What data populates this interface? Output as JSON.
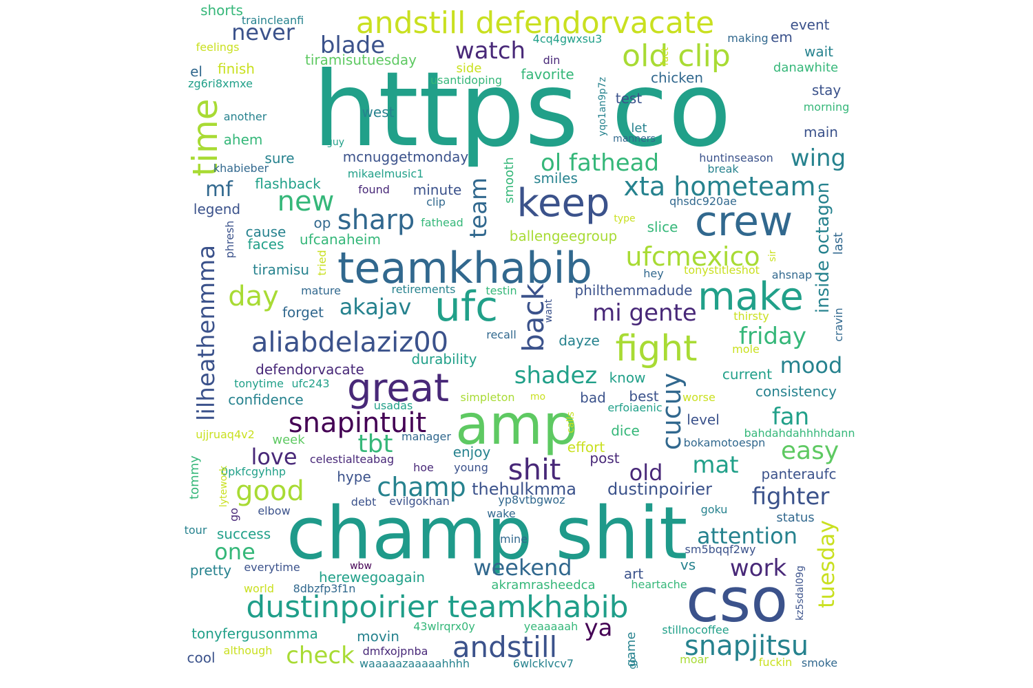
{
  "palette": {
    "teal": "#21a089",
    "teal_dark": "#1f9a8a",
    "lime": "#c9e020",
    "yellow_green": "#a8db34",
    "green": "#5ec962",
    "green_mid": "#35b779",
    "blue": "#31688e",
    "blue_dark": "#3b528b",
    "indigo": "#404688",
    "purple": "#440154",
    "purple_mid": "#482878",
    "teal_blue": "#26828e",
    "cyan": "#1f9e89"
  },
  "words": [
    {
      "text": "https co",
      "color": "teal",
      "vertical": false
    },
    {
      "text": "champ shit",
      "color": "teal_dark",
      "vertical": false
    },
    {
      "text": "cso",
      "color": "blue_dark",
      "vertical": false
    },
    {
      "text": "amp",
      "color": "green",
      "vertical": false
    },
    {
      "text": "teamkhabib",
      "color": "blue",
      "vertical": false
    },
    {
      "text": "andstill defendorvacate",
      "color": "lime",
      "vertical": false
    },
    {
      "text": "dustinpoirier teamkhabib",
      "color": "cyan",
      "vertical": false
    },
    {
      "text": "crew",
      "color": "blue",
      "vertical": false
    },
    {
      "text": "keep",
      "color": "blue_dark",
      "vertical": false
    },
    {
      "text": "ufc",
      "color": "teal",
      "vertical": false
    },
    {
      "text": "great",
      "color": "purple_mid",
      "vertical": false
    },
    {
      "text": "make",
      "color": "teal",
      "vertical": false
    },
    {
      "text": "fight",
      "color": "yellow_green",
      "vertical": false
    },
    {
      "text": "old clip",
      "color": "yellow_green",
      "vertical": false
    },
    {
      "text": "time",
      "color": "yellow_green",
      "vertical": true
    },
    {
      "text": "aliabdelaziz00",
      "color": "blue_dark",
      "vertical": false
    },
    {
      "text": "andstill",
      "color": "blue_dark",
      "vertical": false
    },
    {
      "text": "snapjitsu",
      "color": "teal_blue",
      "vertical": false
    },
    {
      "text": "xta hometeam",
      "color": "teal_blue",
      "vertical": false
    },
    {
      "text": "ufcmexico",
      "color": "yellow_green",
      "vertical": false
    },
    {
      "text": "new",
      "color": "green_mid",
      "vertical": false
    },
    {
      "text": "sharp",
      "color": "blue",
      "vertical": false
    },
    {
      "text": "snapintuit",
      "color": "purple",
      "vertical": false
    },
    {
      "text": "shit",
      "color": "purple_mid",
      "vertical": false
    },
    {
      "text": "good",
      "color": "yellow_green",
      "vertical": false
    },
    {
      "text": "champ",
      "color": "teal_blue",
      "vertical": false
    },
    {
      "text": "back",
      "color": "blue_dark",
      "vertical": true
    },
    {
      "text": "cucuy",
      "color": "blue",
      "vertical": true
    },
    {
      "text": "shadez",
      "color": "teal",
      "vertical": false
    },
    {
      "text": "day",
      "color": "yellow_green",
      "vertical": false
    },
    {
      "text": "lilheathenmma",
      "color": "blue_dark",
      "vertical": true
    },
    {
      "text": "team",
      "color": "blue",
      "vertical": true
    },
    {
      "text": "blade",
      "color": "blue_dark",
      "vertical": false
    },
    {
      "text": "watch",
      "color": "purple_mid",
      "vertical": false
    },
    {
      "text": "never",
      "color": "blue_dark",
      "vertical": false
    },
    {
      "text": "ol fathead",
      "color": "green_mid",
      "vertical": false
    },
    {
      "text": "wing",
      "color": "teal_blue",
      "vertical": false
    },
    {
      "text": "mi gente",
      "color": "purple_mid",
      "vertical": false
    },
    {
      "text": "akajav",
      "color": "teal_blue",
      "vertical": false
    },
    {
      "text": "tbt",
      "color": "green_mid",
      "vertical": false
    },
    {
      "text": "check",
      "color": "yellow_green",
      "vertical": false
    },
    {
      "text": "friday",
      "color": "green_mid",
      "vertical": false
    },
    {
      "text": "mood",
      "color": "teal_blue",
      "vertical": false
    },
    {
      "text": "fan",
      "color": "teal",
      "vertical": false
    },
    {
      "text": "easy",
      "color": "green",
      "vertical": false
    },
    {
      "text": "mat",
      "color": "teal",
      "vertical": false
    },
    {
      "text": "old",
      "color": "purple_mid",
      "vertical": false
    },
    {
      "text": "fighter",
      "color": "blue_dark",
      "vertical": false
    },
    {
      "text": "attention",
      "color": "teal_blue",
      "vertical": false
    },
    {
      "text": "weekend",
      "color": "blue",
      "vertical": false
    },
    {
      "text": "work",
      "color": "purple_mid",
      "vertical": false
    },
    {
      "text": "one",
      "color": "green_mid",
      "vertical": false
    },
    {
      "text": "ya",
      "color": "purple",
      "vertical": false
    },
    {
      "text": "tuesday",
      "color": "lime",
      "vertical": true
    },
    {
      "text": "inside octagon",
      "color": "teal_blue",
      "vertical": true
    },
    {
      "text": "love",
      "color": "purple_mid",
      "vertical": false
    },
    {
      "text": "mf",
      "color": "blue",
      "vertical": false
    },
    {
      "text": "thehulkmma",
      "color": "blue_dark",
      "vertical": false
    },
    {
      "text": "dustinpoirier",
      "color": "blue_dark",
      "vertical": false
    },
    {
      "text": "shorts",
      "color": "green_mid",
      "vertical": false
    },
    {
      "text": "traincleanfi",
      "color": "teal_blue",
      "vertical": false
    },
    {
      "text": "feelings",
      "color": "lime",
      "vertical": false
    },
    {
      "text": "finish",
      "color": "lime",
      "vertical": false
    },
    {
      "text": "tiramisutuesday",
      "color": "green",
      "vertical": false
    },
    {
      "text": "el",
      "color": "blue",
      "vertical": false
    },
    {
      "text": "zg6ri8xmxe",
      "color": "teal",
      "vertical": false
    },
    {
      "text": "another",
      "color": "teal_blue",
      "vertical": false
    },
    {
      "text": "west",
      "color": "teal_blue",
      "vertical": false
    },
    {
      "text": "ahem",
      "color": "green_mid",
      "vertical": false
    },
    {
      "text": "sure",
      "color": "teal_blue",
      "vertical": false
    },
    {
      "text": "guy",
      "color": "teal",
      "vertical": false
    },
    {
      "text": "mcnuggetmonday",
      "color": "blue_dark",
      "vertical": false
    },
    {
      "text": "khabieber",
      "color": "blue",
      "vertical": false
    },
    {
      "text": "mikaelmusic1",
      "color": "teal",
      "vertical": false
    },
    {
      "text": "flashback",
      "color": "teal",
      "vertical": false
    },
    {
      "text": "legend",
      "color": "blue_dark",
      "vertical": false
    },
    {
      "text": "found",
      "color": "purple_mid",
      "vertical": false
    },
    {
      "text": "minute",
      "color": "blue_dark",
      "vertical": false
    },
    {
      "text": "clip",
      "color": "blue",
      "vertical": false
    },
    {
      "text": "smiles",
      "color": "teal_blue",
      "vertical": false
    },
    {
      "text": "smooth",
      "color": "green_mid",
      "vertical": true
    },
    {
      "text": "fathead",
      "color": "green_mid",
      "vertical": false
    },
    {
      "text": "op",
      "color": "blue",
      "vertical": false
    },
    {
      "text": "cause",
      "color": "teal_blue",
      "vertical": false
    },
    {
      "text": "faces",
      "color": "teal",
      "vertical": false
    },
    {
      "text": "ufcanaheim",
      "color": "green_mid",
      "vertical": false
    },
    {
      "text": "ballengeegroup",
      "color": "yellow_green",
      "vertical": false
    },
    {
      "text": "phresh",
      "color": "blue_dark",
      "vertical": true
    },
    {
      "text": "tiramisu",
      "color": "teal_blue",
      "vertical": false
    },
    {
      "text": "tried",
      "color": "lime",
      "vertical": true
    },
    {
      "text": "mature",
      "color": "blue",
      "vertical": false
    },
    {
      "text": "retirements",
      "color": "teal_blue",
      "vertical": false
    },
    {
      "text": "testin",
      "color": "green_mid",
      "vertical": false
    },
    {
      "text": "philthemmadude",
      "color": "blue_dark",
      "vertical": false
    },
    {
      "text": "forget",
      "color": "blue",
      "vertical": false
    },
    {
      "text": "recall",
      "color": "blue",
      "vertical": false
    },
    {
      "text": "dayze",
      "color": "teal_blue",
      "vertical": false
    },
    {
      "text": "durability",
      "color": "teal",
      "vertical": false
    },
    {
      "text": "want",
      "color": "blue_dark",
      "vertical": true
    },
    {
      "text": "defendorvacate",
      "color": "purple_mid",
      "vertical": false
    },
    {
      "text": "tonytime",
      "color": "teal",
      "vertical": false
    },
    {
      "text": "ufc243",
      "color": "teal",
      "vertical": false
    },
    {
      "text": "confidence",
      "color": "teal_blue",
      "vertical": false
    },
    {
      "text": "know",
      "color": "teal",
      "vertical": false
    },
    {
      "text": "bad",
      "color": "blue_dark",
      "vertical": false
    },
    {
      "text": "best",
      "color": "blue_dark",
      "vertical": false
    },
    {
      "text": "simpleton",
      "color": "yellow_green",
      "vertical": false
    },
    {
      "text": "mo",
      "color": "lime",
      "vertical": false
    },
    {
      "text": "usadas",
      "color": "teal",
      "vertical": false
    },
    {
      "text": "calls",
      "color": "lime",
      "vertical": true
    },
    {
      "text": "erfoiaenic",
      "color": "teal",
      "vertical": false
    },
    {
      "text": "dice",
      "color": "green_mid",
      "vertical": false
    },
    {
      "text": "effort",
      "color": "lime",
      "vertical": false
    },
    {
      "text": "ujjruaq4v2",
      "color": "lime",
      "vertical": false
    },
    {
      "text": "week",
      "color": "green",
      "vertical": false
    },
    {
      "text": "manager",
      "color": "blue",
      "vertical": false
    },
    {
      "text": "enjoy",
      "color": "teal_blue",
      "vertical": false
    },
    {
      "text": "post",
      "color": "purple_mid",
      "vertical": false
    },
    {
      "text": "celestialteabag",
      "color": "purple_mid",
      "vertical": false
    },
    {
      "text": "hoe",
      "color": "purple_mid",
      "vertical": false
    },
    {
      "text": "young",
      "color": "blue_dark",
      "vertical": false
    },
    {
      "text": "hype",
      "color": "blue_dark",
      "vertical": false
    },
    {
      "text": "0pkfcgyhhp",
      "color": "teal",
      "vertical": false
    },
    {
      "text": "tommy",
      "color": "green_mid",
      "vertical": true
    },
    {
      "text": "lytework",
      "color": "lime",
      "vertical": true
    },
    {
      "text": "go",
      "color": "purple_mid",
      "vertical": true
    },
    {
      "text": "elbow",
      "color": "blue_dark",
      "vertical": false
    },
    {
      "text": "debt",
      "color": "blue_dark",
      "vertical": false
    },
    {
      "text": "evilgokhan",
      "color": "blue_dark",
      "vertical": false
    },
    {
      "text": "yp8vtbgwoz",
      "color": "blue",
      "vertical": false
    },
    {
      "text": "wake",
      "color": "blue",
      "vertical": false
    },
    {
      "text": "tour",
      "color": "teal_blue",
      "vertical": false
    },
    {
      "text": "success",
      "color": "teal",
      "vertical": false
    },
    {
      "text": "mine",
      "color": "blue",
      "vertical": false
    },
    {
      "text": "pretty",
      "color": "teal_blue",
      "vertical": false
    },
    {
      "text": "everytime",
      "color": "blue_dark",
      "vertical": false
    },
    {
      "text": "wbw",
      "color": "purple",
      "vertical": false
    },
    {
      "text": "herewegoagain",
      "color": "teal",
      "vertical": false
    },
    {
      "text": "art",
      "color": "blue_dark",
      "vertical": false
    },
    {
      "text": "world",
      "color": "lime",
      "vertical": false
    },
    {
      "text": "8dbzfp3f1n",
      "color": "blue",
      "vertical": false
    },
    {
      "text": "akramrasheedca",
      "color": "green_mid",
      "vertical": false
    },
    {
      "text": "heartache",
      "color": "green_mid",
      "vertical": false
    },
    {
      "text": "tonyfergusonmma",
      "color": "teal",
      "vertical": false
    },
    {
      "text": "43wlrqrx0y",
      "color": "green_mid",
      "vertical": false
    },
    {
      "text": "yeaaaaah",
      "color": "green_mid",
      "vertical": false
    },
    {
      "text": "stillnocoffee",
      "color": "teal",
      "vertical": false
    },
    {
      "text": "although",
      "color": "lime",
      "vertical": false
    },
    {
      "text": "movin",
      "color": "teal_blue",
      "vertical": false
    },
    {
      "text": "game",
      "color": "teal_blue",
      "vertical": true
    },
    {
      "text": "go",
      "color": "teal_blue",
      "vertical": true
    },
    {
      "text": "cool",
      "color": "blue_dark",
      "vertical": false
    },
    {
      "text": "dmfxojpnba",
      "color": "purple_mid",
      "vertical": false
    },
    {
      "text": "waaaaazaaaaahhhh",
      "color": "teal_blue",
      "vertical": false
    },
    {
      "text": "6wlcklvcv7",
      "color": "teal_blue",
      "vertical": false
    },
    {
      "text": "moar",
      "color": "yellow_green",
      "vertical": false
    },
    {
      "text": "fuckin",
      "color": "lime",
      "vertical": false
    },
    {
      "text": "smoke",
      "color": "blue",
      "vertical": false
    },
    {
      "text": "kz5sdal09g",
      "color": "blue_dark",
      "vertical": true
    },
    {
      "text": "vs",
      "color": "teal_blue",
      "vertical": false
    },
    {
      "text": "sm5bqqf2wy",
      "color": "blue_dark",
      "vertical": false
    },
    {
      "text": "status",
      "color": "blue",
      "vertical": false
    },
    {
      "text": "goku",
      "color": "teal_blue",
      "vertical": false
    },
    {
      "text": "bahdahdahhhhdann",
      "color": "green_mid",
      "vertical": false
    },
    {
      "text": "bokamotoespn",
      "color": "blue",
      "vertical": false
    },
    {
      "text": "panteraufc",
      "color": "blue_dark",
      "vertical": false
    },
    {
      "text": "level",
      "color": "blue_dark",
      "vertical": false
    },
    {
      "text": "worse",
      "color": "lime",
      "vertical": false
    },
    {
      "text": "consistency",
      "color": "teal_blue",
      "vertical": false
    },
    {
      "text": "current",
      "color": "teal",
      "vertical": false
    },
    {
      "text": "mole",
      "color": "lime",
      "vertical": false
    },
    {
      "text": "thirsty",
      "color": "lime",
      "vertical": false
    },
    {
      "text": "cravin",
      "color": "blue",
      "vertical": true
    },
    {
      "text": "last",
      "color": "blue",
      "vertical": true
    },
    {
      "text": "ahsnap",
      "color": "blue",
      "vertical": false
    },
    {
      "text": "sir",
      "color": "lime",
      "vertical": true
    },
    {
      "text": "tonystitleshot",
      "color": "lime",
      "vertical": false
    },
    {
      "text": "hey",
      "color": "blue",
      "vertical": false
    },
    {
      "text": "slice",
      "color": "green_mid",
      "vertical": false
    },
    {
      "text": "type",
      "color": "lime",
      "vertical": false
    },
    {
      "text": "qhsdc920ae",
      "color": "blue",
      "vertical": false
    },
    {
      "text": "break",
      "color": "teal_blue",
      "vertical": false
    },
    {
      "text": "huntinseason",
      "color": "blue_dark",
      "vertical": false
    },
    {
      "text": "main",
      "color": "blue_dark",
      "vertical": false
    },
    {
      "text": "morning",
      "color": "green_mid",
      "vertical": false
    },
    {
      "text": "stay",
      "color": "blue_dark",
      "vertical": false
    },
    {
      "text": "danawhite",
      "color": "green_mid",
      "vertical": false
    },
    {
      "text": "wait",
      "color": "teal_blue",
      "vertical": false
    },
    {
      "text": "event",
      "color": "blue_dark",
      "vertical": false
    },
    {
      "text": "em",
      "color": "blue_dark",
      "vertical": false
    },
    {
      "text": "making",
      "color": "blue",
      "vertical": false
    },
    {
      "text": "fact",
      "color": "lime",
      "vertical": true
    },
    {
      "text": "4cq4gwxsu3",
      "color": "teal",
      "vertical": false
    },
    {
      "text": "din",
      "color": "purple_mid",
      "vertical": false
    },
    {
      "text": "side",
      "color": "lime",
      "vertical": false
    },
    {
      "text": "favorite",
      "color": "green_mid",
      "vertical": false
    },
    {
      "text": "usantidoping",
      "color": "green_mid",
      "vertical": false
    },
    {
      "text": "yqo1an9p7z",
      "color": "teal_blue",
      "vertical": true
    },
    {
      "text": "chicken",
      "color": "blue",
      "vertical": false
    },
    {
      "text": "test",
      "color": "blue_dark",
      "vertical": false
    },
    {
      "text": "let",
      "color": "teal_blue",
      "vertical": false
    },
    {
      "text": "manners",
      "color": "blue",
      "vertical": false
    }
  ]
}
